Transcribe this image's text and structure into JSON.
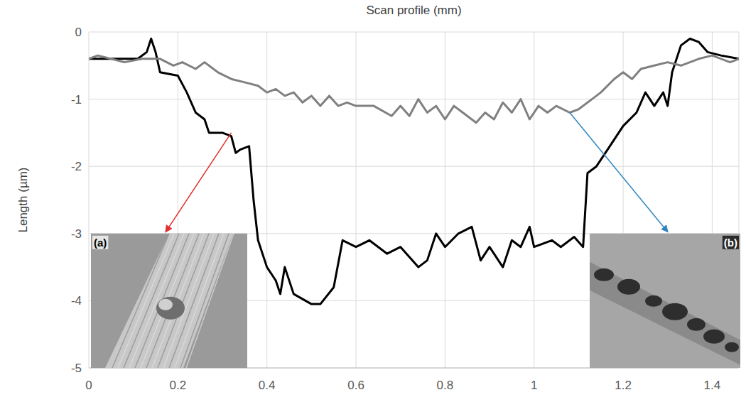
{
  "chart_data": {
    "type": "line",
    "title": "Scan profile  (mm)",
    "y_label": "Length  (µm)",
    "xlim": [
      0,
      1.46
    ],
    "xticks": [
      0,
      0.2,
      0.4,
      0.6,
      0.8,
      1,
      1.2,
      1.4
    ],
    "ylim": [
      -5,
      0
    ],
    "yticks": [
      -5,
      -4,
      -3,
      -2,
      -1,
      0
    ],
    "grid": true,
    "series": [
      {
        "color": "#000000",
        "line_style": "solid",
        "x": [
          0,
          0.04,
          0.08,
          0.11,
          0.13,
          0.14,
          0.15,
          0.16,
          0.2,
          0.22,
          0.24,
          0.26,
          0.27,
          0.3,
          0.32,
          0.33,
          0.34,
          0.36,
          0.37,
          0.38,
          0.4,
          0.42,
          0.43,
          0.44,
          0.46,
          0.5,
          0.52,
          0.55,
          0.57,
          0.6,
          0.63,
          0.67,
          0.7,
          0.74,
          0.76,
          0.78,
          0.8,
          0.83,
          0.86,
          0.88,
          0.9,
          0.93,
          0.95,
          0.97,
          0.99,
          1.0,
          1.04,
          1.06,
          1.09,
          1.11,
          1.12,
          1.14,
          1.17,
          1.2,
          1.23,
          1.25,
          1.27,
          1.29,
          1.3,
          1.31,
          1.33,
          1.35,
          1.37,
          1.39,
          1.42,
          1.46
        ],
        "values": [
          -0.4,
          -0.4,
          -0.4,
          -0.4,
          -0.3,
          -0.1,
          -0.3,
          -0.6,
          -0.65,
          -0.9,
          -1.2,
          -1.3,
          -1.5,
          -1.5,
          -1.55,
          -1.8,
          -1.75,
          -1.7,
          -2.5,
          -3.1,
          -3.5,
          -3.7,
          -3.9,
          -3.5,
          -3.9,
          -4.05,
          -4.05,
          -3.8,
          -3.1,
          -3.2,
          -3.1,
          -3.3,
          -3.2,
          -3.5,
          -3.4,
          -3.0,
          -3.2,
          -3.0,
          -2.9,
          -3.4,
          -3.2,
          -3.5,
          -3.1,
          -3.2,
          -2.9,
          -3.2,
          -3.1,
          -3.2,
          -3.05,
          -3.2,
          -2.1,
          -2.0,
          -1.7,
          -1.4,
          -1.2,
          -0.9,
          -1.1,
          -0.9,
          -1.1,
          -0.6,
          -0.2,
          -0.1,
          -0.15,
          -0.3,
          -0.35,
          -0.4
        ]
      },
      {
        "color": "#808080",
        "line_style": "solid",
        "x": [
          0,
          0.02,
          0.05,
          0.08,
          0.12,
          0.16,
          0.19,
          0.21,
          0.24,
          0.26,
          0.29,
          0.32,
          0.35,
          0.38,
          0.4,
          0.42,
          0.44,
          0.46,
          0.48,
          0.5,
          0.52,
          0.54,
          0.56,
          0.58,
          0.6,
          0.64,
          0.68,
          0.7,
          0.72,
          0.74,
          0.76,
          0.78,
          0.8,
          0.82,
          0.84,
          0.87,
          0.89,
          0.91,
          0.93,
          0.95,
          0.97,
          0.99,
          1.01,
          1.03,
          1.05,
          1.08,
          1.1,
          1.13,
          1.15,
          1.18,
          1.2,
          1.22,
          1.24,
          1.27,
          1.3,
          1.33,
          1.37,
          1.4,
          1.44,
          1.46
        ],
        "values": [
          -0.4,
          -0.35,
          -0.4,
          -0.45,
          -0.4,
          -0.4,
          -0.5,
          -0.45,
          -0.55,
          -0.45,
          -0.6,
          -0.7,
          -0.75,
          -0.8,
          -0.9,
          -0.85,
          -0.95,
          -0.9,
          -1.05,
          -0.95,
          -1.1,
          -0.95,
          -1.1,
          -1.05,
          -1.1,
          -1.1,
          -1.25,
          -1.1,
          -1.25,
          -1.0,
          -1.2,
          -1.1,
          -1.3,
          -1.1,
          -1.2,
          -1.35,
          -1.2,
          -1.3,
          -1.05,
          -1.2,
          -1.0,
          -1.3,
          -1.1,
          -1.2,
          -1.1,
          -1.2,
          -1.15,
          -1.0,
          -0.9,
          -0.7,
          -0.6,
          -0.7,
          -0.55,
          -0.5,
          -0.45,
          -0.5,
          -0.4,
          -0.35,
          -0.45,
          -0.4
        ]
      }
    ],
    "annotations": [
      {
        "text": "(a)",
        "x": 0.32,
        "y": -1.5,
        "color": "#e03030"
      },
      {
        "text": "(b)",
        "x": 1.08,
        "y": -1.2,
        "color": "#2e86c1"
      }
    ]
  }
}
